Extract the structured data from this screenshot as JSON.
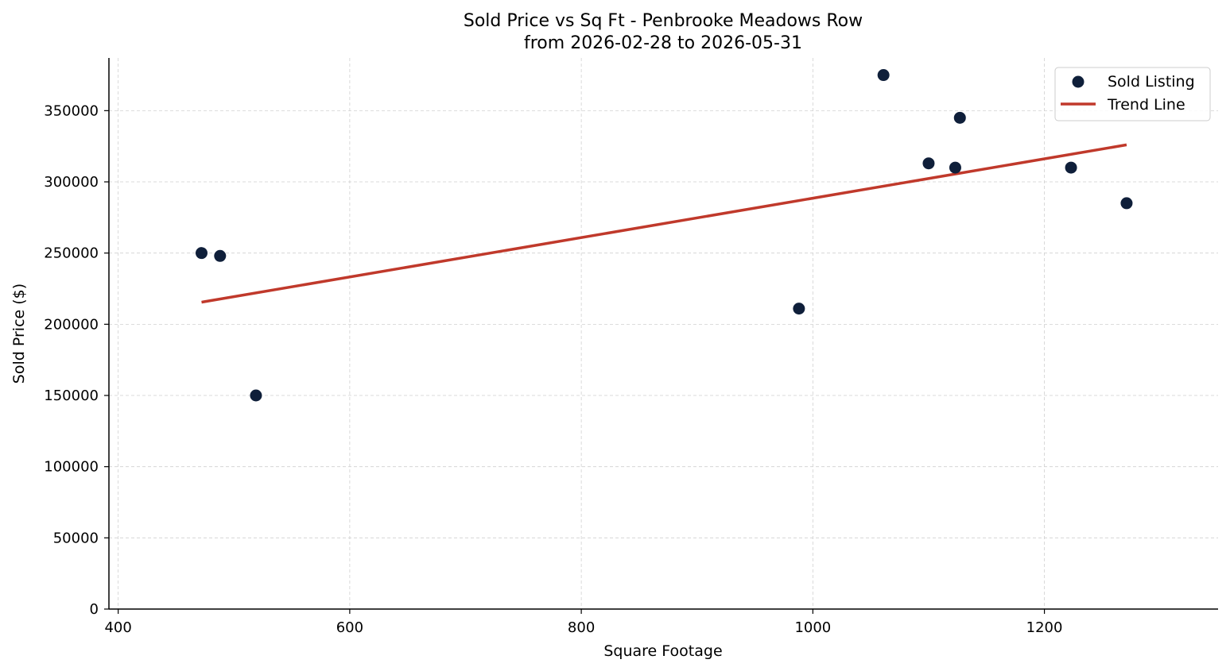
{
  "chart_data": {
    "type": "scatter",
    "title": "Sold Price vs Sq Ft - Penbrooke Meadows Row",
    "subtitle": "from 2026-02-28 to 2026-05-31",
    "xlabel": "Square Footage",
    "ylabel": "Sold Price ($)",
    "xlim": [
      392,
      1350
    ],
    "ylim": [
      0,
      387000
    ],
    "xticks": [
      400,
      600,
      800,
      1000,
      1200
    ],
    "yticks": [
      0,
      50000,
      100000,
      150000,
      200000,
      250000,
      300000,
      350000
    ],
    "grid": true,
    "legend_position": "top-right",
    "series": [
      {
        "name": "Sold Listing",
        "kind": "scatter",
        "color": "#0f1f3a",
        "points": [
          {
            "x": 472,
            "y": 250000
          },
          {
            "x": 488,
            "y": 248000
          },
          {
            "x": 519,
            "y": 150000
          },
          {
            "x": 988,
            "y": 211000
          },
          {
            "x": 1061,
            "y": 375000
          },
          {
            "x": 1100,
            "y": 313000
          },
          {
            "x": 1123,
            "y": 310000
          },
          {
            "x": 1127,
            "y": 345000
          },
          {
            "x": 1223,
            "y": 310000
          },
          {
            "x": 1271,
            "y": 285000
          }
        ]
      },
      {
        "name": "Trend Line",
        "kind": "line",
        "color": "#c0392b",
        "points": [
          {
            "x": 472,
            "y": 215500
          },
          {
            "x": 1271,
            "y": 326000
          }
        ]
      }
    ]
  }
}
